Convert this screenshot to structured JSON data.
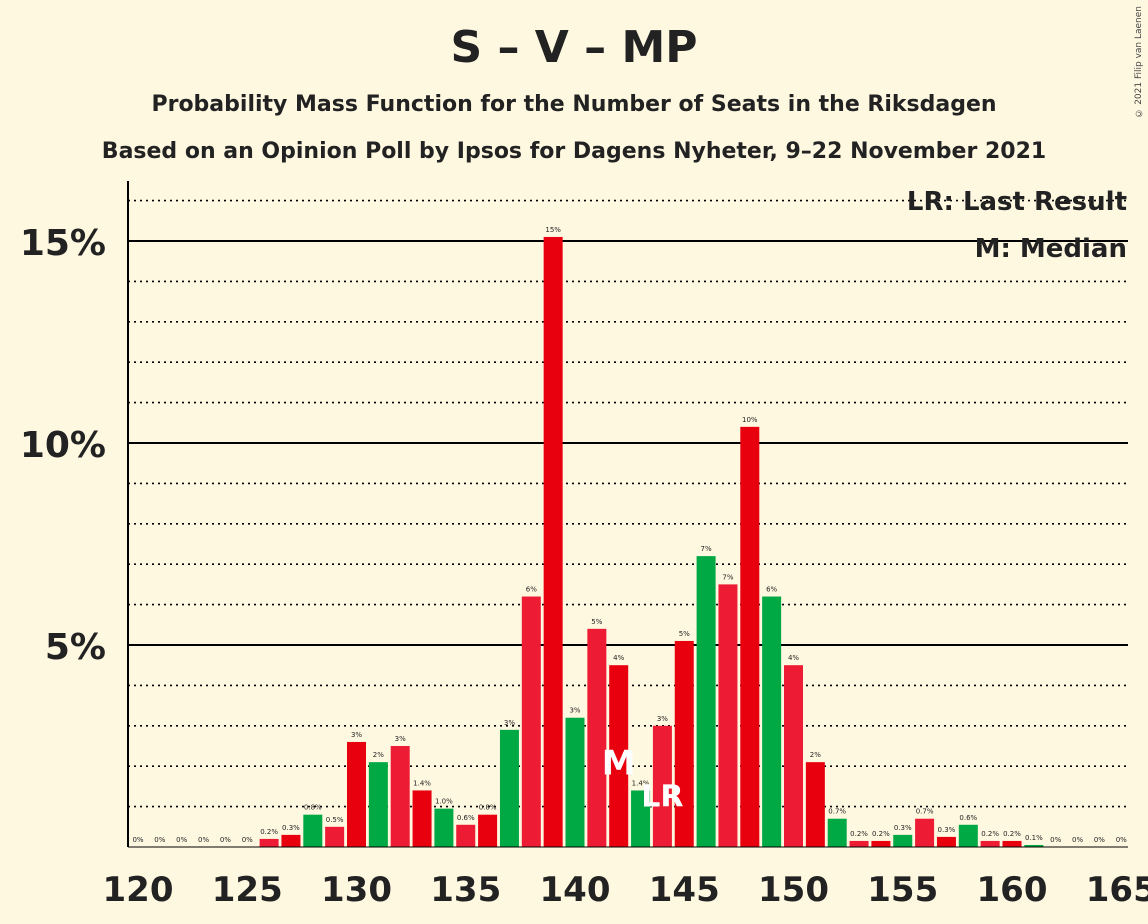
{
  "title": "S – V – MP",
  "subtitle": "Probability Mass Function for the Number of Seats in the Riksdagen",
  "subtitle2": "Based on an Opinion Poll by Ipsos for Dagens Nyheter, 9–22 November 2021",
  "copyright": "© 2021 Filip van Laenen",
  "colors": {
    "red": "#E8000F",
    "crimson": "#ED1B34",
    "green": "#00A944",
    "background": "#FFF8E1"
  },
  "chart_data": {
    "type": "bar",
    "title": "S – V – MP",
    "xlabel": "",
    "ylabel": "",
    "xlim": [
      120,
      165
    ],
    "ylim": [
      0,
      16.5
    ],
    "x_ticks": [
      "120",
      "125",
      "130",
      "135",
      "140",
      "145",
      "150",
      "155",
      "160",
      "165"
    ],
    "y_ticks": [
      {
        "value": 5,
        "label": "5%"
      },
      {
        "value": 10,
        "label": "10%"
      },
      {
        "value": 15,
        "label": "15%"
      }
    ],
    "legend": [
      "LR: Last Result",
      "M: Median"
    ],
    "median": {
      "seats": 142,
      "label": "M"
    },
    "last_result": {
      "seats": 144,
      "label": "LR"
    },
    "bars": [
      {
        "seats": 120,
        "value": 0,
        "label": "0%",
        "color": "red"
      },
      {
        "seats": 121,
        "value": 0,
        "label": "0%",
        "color": "red"
      },
      {
        "seats": 122,
        "value": 0,
        "label": "0%",
        "color": "red"
      },
      {
        "seats": 123,
        "value": 0,
        "label": "0%",
        "color": "red"
      },
      {
        "seats": 124,
        "value": 0,
        "label": "0%",
        "color": "red"
      },
      {
        "seats": 125,
        "value": 0,
        "label": "0%",
        "color": "red"
      },
      {
        "seats": 126,
        "value": 0.2,
        "label": "0.2%",
        "color": "crimson"
      },
      {
        "seats": 127,
        "value": 0.3,
        "label": "0.3%",
        "color": "red"
      },
      {
        "seats": 128,
        "value": 0.8,
        "label": "0.8%",
        "color": "green"
      },
      {
        "seats": 129,
        "value": 0.5,
        "label": "0.5%",
        "color": "crimson"
      },
      {
        "seats": 130,
        "value": 2.6,
        "label": "3%",
        "color": "red"
      },
      {
        "seats": 131,
        "value": 2.1,
        "label": "2%",
        "color": "green"
      },
      {
        "seats": 132,
        "value": 2.5,
        "label": "3%",
        "color": "crimson"
      },
      {
        "seats": 133,
        "value": 1.4,
        "label": "1.4%",
        "color": "red"
      },
      {
        "seats": 134,
        "value": 0.95,
        "label": "1.0%",
        "color": "green"
      },
      {
        "seats": 135,
        "value": 0.55,
        "label": "0.6%",
        "color": "crimson"
      },
      {
        "seats": 136,
        "value": 0.8,
        "label": "0.8%",
        "color": "red"
      },
      {
        "seats": 137,
        "value": 2.9,
        "label": "3%",
        "color": "green"
      },
      {
        "seats": 138,
        "value": 6.2,
        "label": "6%",
        "color": "crimson"
      },
      {
        "seats": 139,
        "value": 15.1,
        "label": "15%",
        "color": "red"
      },
      {
        "seats": 140,
        "value": 3.2,
        "label": "3%",
        "color": "green"
      },
      {
        "seats": 141,
        "value": 5.4,
        "label": "5%",
        "color": "crimson"
      },
      {
        "seats": 142,
        "value": 4.5,
        "label": "4%",
        "color": "red"
      },
      {
        "seats": 143,
        "value": 1.4,
        "label": "1.4%",
        "color": "green"
      },
      {
        "seats": 144,
        "value": 3.0,
        "label": "3%",
        "color": "crimson"
      },
      {
        "seats": 145,
        "value": 5.1,
        "label": "5%",
        "color": "red"
      },
      {
        "seats": 146,
        "value": 7.2,
        "label": "7%",
        "color": "green"
      },
      {
        "seats": 147,
        "value": 6.5,
        "label": "7%",
        "color": "crimson"
      },
      {
        "seats": 148,
        "value": 10.4,
        "label": "10%",
        "color": "red"
      },
      {
        "seats": 149,
        "value": 6.2,
        "label": "6%",
        "color": "green"
      },
      {
        "seats": 150,
        "value": 4.5,
        "label": "4%",
        "color": "crimson"
      },
      {
        "seats": 151,
        "value": 2.1,
        "label": "2%",
        "color": "red"
      },
      {
        "seats": 152,
        "value": 0.7,
        "label": "0.7%",
        "color": "green"
      },
      {
        "seats": 153,
        "value": 0.15,
        "label": "0.2%",
        "color": "crimson"
      },
      {
        "seats": 154,
        "value": 0.15,
        "label": "0.2%",
        "color": "red"
      },
      {
        "seats": 155,
        "value": 0.3,
        "label": "0.3%",
        "color": "green"
      },
      {
        "seats": 156,
        "value": 0.7,
        "label": "0.7%",
        "color": "crimson"
      },
      {
        "seats": 157,
        "value": 0.25,
        "label": "0.3%",
        "color": "red"
      },
      {
        "seats": 158,
        "value": 0.55,
        "label": "0.6%",
        "color": "green"
      },
      {
        "seats": 159,
        "value": 0.15,
        "label": "0.2%",
        "color": "crimson"
      },
      {
        "seats": 160,
        "value": 0.15,
        "label": "0.2%",
        "color": "red"
      },
      {
        "seats": 161,
        "value": 0.05,
        "label": "0.1%",
        "color": "green"
      },
      {
        "seats": 162,
        "value": 0,
        "label": "0%",
        "color": "crimson"
      },
      {
        "seats": 163,
        "value": 0,
        "label": "0%",
        "color": "red"
      },
      {
        "seats": 164,
        "value": 0,
        "label": "0%",
        "color": "green"
      },
      {
        "seats": 165,
        "value": 0,
        "label": "0%",
        "color": "crimson"
      }
    ]
  }
}
